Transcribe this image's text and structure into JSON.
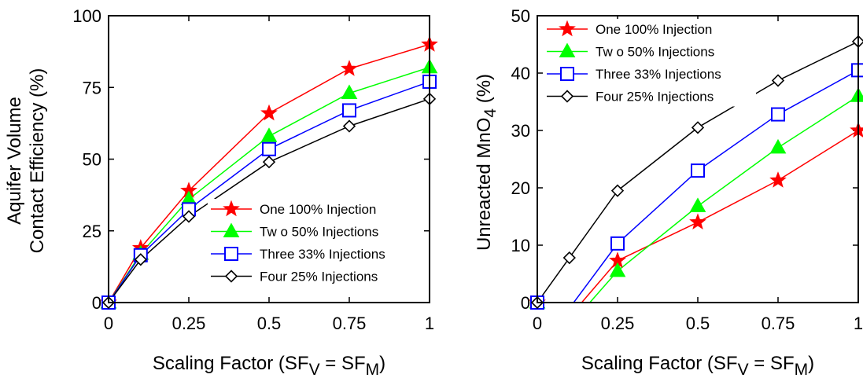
{
  "chart_data": [
    {
      "type": "line",
      "title": "",
      "xlabel": {
        "pre": "Scaling Factor (SF",
        "sub1": "V",
        "mid": " = SF",
        "sub2": "M",
        "post": ")"
      },
      "ylabel_lines": [
        "Aquifer Volume",
        "Contact Efficiency (%)"
      ],
      "xlim": [
        0,
        1
      ],
      "ylim": [
        0,
        100
      ],
      "xticks": [
        0,
        0.25,
        0.5,
        0.75,
        1
      ],
      "xtick_labels": [
        "0",
        "0.25",
        "0.5",
        "0.75",
        "1"
      ],
      "yticks": [
        0,
        25,
        50,
        75,
        100
      ],
      "ytick_labels": [
        "0",
        "25",
        "50",
        "75",
        "100"
      ],
      "legend_position": "lower-right",
      "series": [
        {
          "name": "One 100% Injection",
          "color": "#ff0000",
          "marker": "star",
          "x": [
            0,
            0.1,
            0.25,
            0.5,
            0.75,
            1
          ],
          "y": [
            0,
            19,
            39,
            66,
            81.5,
            90
          ]
        },
        {
          "name": "Tw o 50% Injections",
          "color": "#00ff00",
          "marker": "triangle",
          "x": [
            0,
            0.1,
            0.25,
            0.5,
            0.75,
            1
          ],
          "y": [
            0,
            17,
            36,
            58,
            73,
            82
          ]
        },
        {
          "name": "Three 33% Injections",
          "color": "#0000ff",
          "marker": "square",
          "x": [
            0,
            0.1,
            0.25,
            0.5,
            0.75,
            1
          ],
          "y": [
            0,
            16.5,
            32.5,
            53.5,
            67,
            77
          ]
        },
        {
          "name": "Four 25% Injections",
          "color": "#000000",
          "marker": "diamond",
          "x": [
            0,
            0.1,
            0.25,
            0.5,
            0.75,
            1
          ],
          "y": [
            0,
            15,
            30,
            49,
            61.5,
            71
          ]
        }
      ]
    },
    {
      "type": "line",
      "title": "",
      "xlabel": {
        "pre": "Scaling Factor (SF",
        "sub1": "V",
        "mid": " = SF",
        "sub2": "M",
        "post": ")"
      },
      "ylabel": {
        "pre": "Unreacted MnO",
        "sub": "4",
        "post": " (%)"
      },
      "xlim": [
        0,
        1
      ],
      "ylim": [
        0,
        50
      ],
      "xticks": [
        0,
        0.25,
        0.5,
        0.75,
        1
      ],
      "xtick_labels": [
        "0",
        "0.25",
        "0.5",
        "0.75",
        "1"
      ],
      "yticks": [
        0,
        10,
        20,
        30,
        40,
        50
      ],
      "ytick_labels": [
        "0",
        "10",
        "20",
        "30",
        "40",
        "50"
      ],
      "legend_position": "top-left",
      "series": [
        {
          "name": "One 100% Injection",
          "color": "#ff0000",
          "marker": "star",
          "points": [
            [
              0,
              0
            ],
            [
              0.25,
              7.3
            ],
            [
              0.5,
              14
            ],
            [
              0.75,
              21.3
            ],
            [
              1,
              30
            ]
          ],
          "segments": [
            [
              [
                0.1,
                -2.5
              ],
              [
                0.25,
                7.3
              ]
            ],
            [
              [
                0.25,
                7.3
              ],
              [
                0.5,
                14
              ]
            ],
            [
              [
                0.5,
                14
              ],
              [
                0.75,
                21.3
              ]
            ],
            [
              [
                0.75,
                21.3
              ],
              [
                1,
                30
              ]
            ]
          ]
        },
        {
          "name": "Tw o 50% Injections",
          "color": "#00ff00",
          "marker": "triangle",
          "points": [
            [
              0,
              0
            ],
            [
              0.25,
              5.5
            ],
            [
              0.5,
              16.8
            ],
            [
              0.75,
              27
            ],
            [
              1,
              36
            ]
          ],
          "segments": [
            [
              [
                0.14,
                -1.5
              ],
              [
                0.25,
                5.5
              ]
            ],
            [
              [
                0.25,
                5.5
              ],
              [
                0.5,
                16.8
              ]
            ],
            [
              [
                0.5,
                16.8
              ],
              [
                0.75,
                27
              ]
            ],
            [
              [
                0.75,
                27
              ],
              [
                1,
                36
              ]
            ]
          ]
        },
        {
          "name": "Three 33% Injections",
          "color": "#0000ff",
          "marker": "square",
          "points": [
            [
              0,
              0
            ],
            [
              0.25,
              10.3
            ],
            [
              0.5,
              23
            ],
            [
              0.75,
              32.8
            ],
            [
              1,
              40.5
            ]
          ],
          "segments": [
            [
              [
                0.1,
                -1
              ],
              [
                0.25,
                10.3
              ]
            ],
            [
              [
                0.25,
                10.3
              ],
              [
                0.5,
                23
              ]
            ],
            [
              [
                0.5,
                23
              ],
              [
                0.75,
                32.8
              ]
            ],
            [
              [
                0.75,
                32.8
              ],
              [
                1,
                40.5
              ]
            ]
          ]
        },
        {
          "name": "Four 25% Injections",
          "color": "#000000",
          "marker": "diamond",
          "points": [
            [
              0,
              0
            ],
            [
              0.1,
              7.8
            ],
            [
              0.25,
              19.5
            ],
            [
              0.5,
              30.5
            ],
            [
              0.75,
              38.7
            ],
            [
              1,
              45.5
            ]
          ],
          "segments": [
            [
              [
                0,
                0
              ],
              [
                0.1,
                7.8
              ]
            ],
            [
              [
                0.1,
                7.8
              ],
              [
                0.25,
                19.5
              ]
            ],
            [
              [
                0.25,
                19.5
              ],
              [
                0.5,
                30.5
              ]
            ],
            [
              [
                0.5,
                30.5
              ],
              [
                0.75,
                38.7
              ]
            ],
            [
              [
                0.75,
                38.7
              ],
              [
                1,
                45.5
              ]
            ]
          ]
        }
      ]
    }
  ]
}
